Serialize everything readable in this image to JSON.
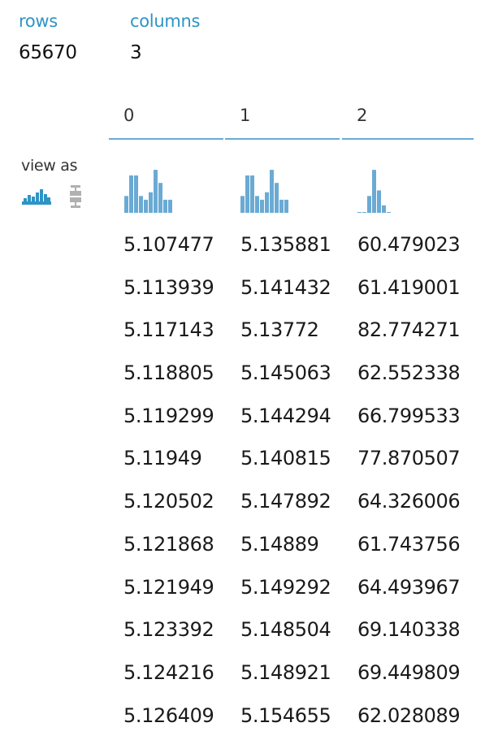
{
  "summary": {
    "rows_label": "rows",
    "rows_value": "65670",
    "columns_label": "columns",
    "columns_value": "3"
  },
  "columns": [
    {
      "header": "0",
      "histogram": [
        0.45,
        1.0,
        1.0,
        0.45,
        0.35,
        0.55,
        1.15,
        0.8,
        0.35,
        0.35
      ]
    },
    {
      "header": "1",
      "histogram": [
        0.45,
        1.0,
        1.0,
        0.45,
        0.35,
        0.55,
        1.15,
        0.8,
        0.35,
        0.35
      ]
    },
    {
      "header": "2",
      "histogram": [
        0.02,
        0.0,
        0.45,
        1.15,
        0.6,
        0.2,
        0.02
      ]
    }
  ],
  "view_as": {
    "label": "view as",
    "options": [
      "histogram-icon",
      "boxplot-icon"
    ],
    "selected": "histogram-icon"
  },
  "colors": {
    "accent": "#2e94c6",
    "histogram_bar": "#6aaad4",
    "inactive_icon": "#b0b0b0"
  },
  "rows": [
    [
      "5.107477",
      "5.135881",
      "60.479023"
    ],
    [
      "5.113939",
      "5.141432",
      "61.419001"
    ],
    [
      "5.117143",
      "5.13772",
      "82.774271"
    ],
    [
      "5.118805",
      "5.145063",
      "62.552338"
    ],
    [
      "5.119299",
      "5.144294",
      "66.799533"
    ],
    [
      "5.11949",
      "5.140815",
      "77.870507"
    ],
    [
      "5.120502",
      "5.147892",
      "64.326006"
    ],
    [
      "5.121868",
      "5.14889",
      "61.743756"
    ],
    [
      "5.121949",
      "5.149292",
      "64.493967"
    ],
    [
      "5.123392",
      "5.148504",
      "69.140338"
    ],
    [
      "5.124216",
      "5.148921",
      "69.449809"
    ],
    [
      "5.126409",
      "5.154655",
      "62.028089"
    ]
  ]
}
